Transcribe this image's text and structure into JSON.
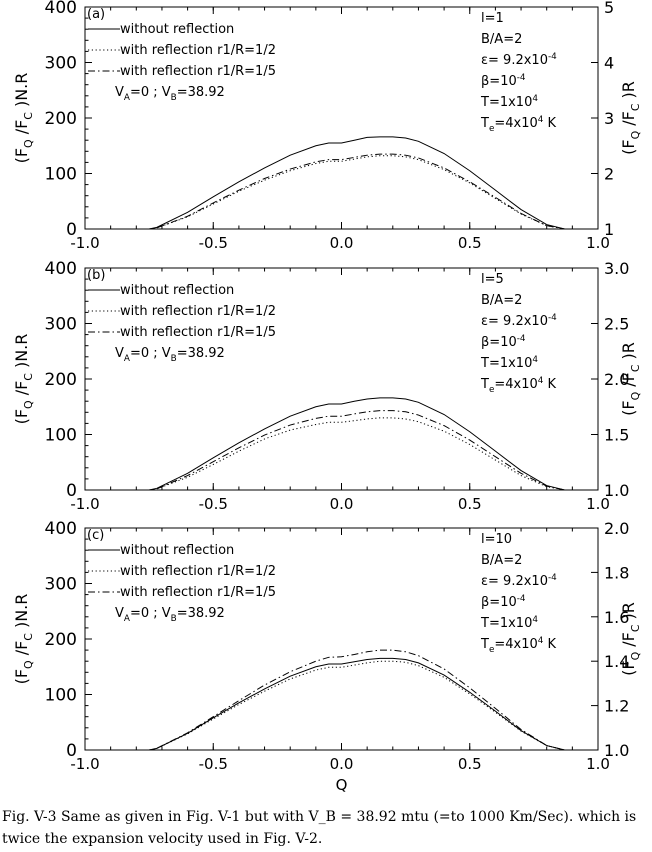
{
  "caption": "Fig. V-3 Same as given in Fig. V-1 but with V_B = 38.92 mtu (=to 1000 Km/Sec). which is twice the expansion velocity used in Fig. V-2.",
  "chart_data": [
    {
      "type": "line",
      "panel_label": "(a)",
      "xlabel": "",
      "ylabel_left": "(F_Q /F_C )N.R",
      "ylabel_right": "(F_Q /F_C )R",
      "xlim": [
        -1.0,
        1.0
      ],
      "ylim_left": [
        0,
        400
      ],
      "ylim_right": [
        1,
        5
      ],
      "x_ticks": [
        "-1.0",
        "-0.5",
        "0.0",
        "0.5",
        "1.0"
      ],
      "y_ticks_left": [
        "0",
        "100",
        "200",
        "300",
        "400"
      ],
      "y_ticks_right": [
        "1",
        "2",
        "3",
        "4",
        "5"
      ],
      "legend": [
        "without reflection",
        "with reflection r1/R=1/2",
        "with reflection r1/R=1/5"
      ],
      "velocity_note": "V_A=0 ; V_B=38.92",
      "params": [
        "l=1",
        "B/A=2",
        "ε= 9.2x10^-4",
        "β=10^-4",
        "T=1x10^4",
        "T_e=4x10^4 K"
      ],
      "series": [
        {
          "name": "without reflection",
          "style": "solid",
          "x": [
            -1.0,
            -0.75,
            -0.72,
            -0.6,
            -0.5,
            -0.4,
            -0.3,
            -0.2,
            -0.1,
            -0.05,
            0.0,
            0.05,
            0.1,
            0.15,
            0.2,
            0.25,
            0.3,
            0.4,
            0.5,
            0.6,
            0.7,
            0.8,
            0.87,
            1.0
          ],
          "y": [
            0,
            0,
            3,
            30,
            58,
            85,
            110,
            133,
            150,
            155,
            155,
            160,
            165,
            166,
            166,
            164,
            158,
            136,
            105,
            70,
            35,
            8,
            0,
            0
          ]
        },
        {
          "name": "with reflection r1/R=1/2",
          "style": "dotted",
          "x": [
            -1.0,
            -0.75,
            -0.72,
            -0.6,
            -0.5,
            -0.4,
            -0.3,
            -0.2,
            -0.1,
            -0.05,
            0.0,
            0.05,
            0.1,
            0.15,
            0.2,
            0.25,
            0.3,
            0.4,
            0.5,
            0.6,
            0.7,
            0.8,
            0.87,
            1.0
          ],
          "y": [
            0,
            0,
            2,
            22,
            45,
            68,
            88,
            105,
            118,
            122,
            122,
            126,
            130,
            132,
            132,
            130,
            125,
            107,
            83,
            55,
            27,
            6,
            0,
            0
          ]
        },
        {
          "name": "with reflection r1/R=1/5",
          "style": "dashdot",
          "x": [
            -1.0,
            -0.75,
            -0.72,
            -0.6,
            -0.5,
            -0.4,
            -0.3,
            -0.2,
            -0.1,
            -0.05,
            0.0,
            0.05,
            0.1,
            0.15,
            0.2,
            0.25,
            0.3,
            0.4,
            0.5,
            0.6,
            0.7,
            0.8,
            0.87,
            1.0
          ],
          "y": [
            0,
            0,
            2,
            23,
            47,
            70,
            91,
            108,
            121,
            125,
            125,
            129,
            133,
            135,
            135,
            133,
            128,
            110,
            85,
            57,
            28,
            6,
            0,
            0
          ]
        }
      ]
    },
    {
      "type": "line",
      "panel_label": "(b)",
      "xlabel": "",
      "ylabel_left": "(F_Q /F_C )N.R",
      "ylabel_right": "(F_Q /F_C )R",
      "xlim": [
        -1.0,
        1.0
      ],
      "ylim_left": [
        0,
        400
      ],
      "ylim_right": [
        1.0,
        3.0
      ],
      "x_ticks": [
        "-1.0",
        "-0.5",
        "0.0",
        "0.5",
        "1.0"
      ],
      "y_ticks_left": [
        "0",
        "100",
        "200",
        "300",
        "400"
      ],
      "y_ticks_right": [
        "1.0",
        "1.5",
        "2.0",
        "2.5",
        "3.0"
      ],
      "legend": [
        "without reflection",
        "with reflection r1/R=1/2",
        "with reflection r1/R=1/5"
      ],
      "velocity_note": "V_A=0 ; V_B=38.92",
      "params": [
        "l=5",
        "B/A=2",
        "ε= 9.2x10^-4",
        "β=10^-4",
        "T=1x10^4",
        "T_e=4x10^4 K"
      ],
      "series": [
        {
          "name": "without reflection",
          "style": "solid",
          "x": [
            -1.0,
            -0.75,
            -0.72,
            -0.6,
            -0.5,
            -0.4,
            -0.3,
            -0.2,
            -0.1,
            -0.05,
            0.0,
            0.05,
            0.1,
            0.15,
            0.2,
            0.25,
            0.3,
            0.4,
            0.5,
            0.6,
            0.7,
            0.8,
            0.87,
            1.0
          ],
          "y": [
            0,
            0,
            3,
            30,
            58,
            85,
            110,
            133,
            150,
            155,
            155,
            160,
            164,
            166,
            166,
            164,
            158,
            136,
            105,
            70,
            35,
            8,
            0,
            0
          ]
        },
        {
          "name": "with reflection r1/R=1/2",
          "style": "dotted",
          "x": [
            -1.0,
            -0.75,
            -0.72,
            -0.6,
            -0.5,
            -0.4,
            -0.3,
            -0.2,
            -0.1,
            -0.05,
            0.0,
            0.05,
            0.1,
            0.15,
            0.2,
            0.25,
            0.3,
            0.4,
            0.5,
            0.6,
            0.7,
            0.8,
            0.87,
            1.0
          ],
          "y": [
            0,
            0,
            2,
            23,
            46,
            70,
            92,
            108,
            118,
            122,
            122,
            125,
            128,
            130,
            130,
            128,
            123,
            106,
            82,
            54,
            26,
            6,
            0,
            0
          ]
        },
        {
          "name": "with reflection r1/R=1/5",
          "style": "dashdot",
          "x": [
            -1.0,
            -0.75,
            -0.72,
            -0.6,
            -0.5,
            -0.4,
            -0.3,
            -0.2,
            -0.1,
            -0.05,
            0.0,
            0.05,
            0.1,
            0.15,
            0.2,
            0.25,
            0.3,
            0.4,
            0.5,
            0.6,
            0.7,
            0.8,
            0.87,
            1.0
          ],
          "y": [
            0,
            0,
            2,
            26,
            51,
            76,
            99,
            117,
            129,
            133,
            133,
            137,
            141,
            143,
            143,
            141,
            135,
            116,
            90,
            60,
            30,
            7,
            0,
            0
          ]
        }
      ]
    },
    {
      "type": "line",
      "panel_label": "(c)",
      "xlabel": "Q",
      "ylabel_left": "(F_Q /F_C )N.R",
      "ylabel_right": "(F_Q /F_C )R",
      "xlim": [
        -1.0,
        1.0
      ],
      "ylim_left": [
        0,
        400
      ],
      "ylim_right": [
        1.0,
        2.0
      ],
      "x_ticks": [
        "-1.0",
        "-0.5",
        "0.0",
        "0.5",
        "1.0"
      ],
      "y_ticks_left": [
        "0",
        "100",
        "200",
        "300",
        "400"
      ],
      "y_ticks_right": [
        "1.0",
        "1.2",
        "1.4",
        "1.6",
        "1.8",
        "2.0"
      ],
      "legend": [
        "without reflection",
        "with reflection r1/R=1/2",
        "with reflection r1/R=1/5"
      ],
      "velocity_note": "V_A=0 ; V_B=38.92",
      "params": [
        "l=10",
        "B/A=2",
        "ε= 9.2x10^-4",
        "β=10^-4",
        "T=1x10^4",
        "T_e=4x10^4 K"
      ],
      "series": [
        {
          "name": "without reflection",
          "style": "solid",
          "x": [
            -1.0,
            -0.75,
            -0.72,
            -0.6,
            -0.5,
            -0.4,
            -0.3,
            -0.2,
            -0.1,
            -0.05,
            0.0,
            0.05,
            0.1,
            0.15,
            0.2,
            0.25,
            0.3,
            0.4,
            0.5,
            0.6,
            0.7,
            0.8,
            0.87,
            1.0
          ],
          "y": [
            0,
            0,
            3,
            30,
            58,
            85,
            110,
            133,
            150,
            155,
            155,
            159,
            163,
            165,
            165,
            163,
            157,
            135,
            104,
            70,
            35,
            8,
            0,
            0
          ]
        },
        {
          "name": "with reflection r1/R=1/2",
          "style": "dotted",
          "x": [
            -1.0,
            -0.75,
            -0.72,
            -0.6,
            -0.5,
            -0.4,
            -0.3,
            -0.2,
            -0.1,
            -0.05,
            0.0,
            0.05,
            0.1,
            0.15,
            0.2,
            0.25,
            0.3,
            0.4,
            0.5,
            0.6,
            0.7,
            0.8,
            0.87,
            1.0
          ],
          "y": [
            0,
            0,
            3,
            29,
            56,
            82,
            106,
            128,
            144,
            149,
            149,
            153,
            157,
            160,
            160,
            158,
            152,
            131,
            101,
            68,
            34,
            8,
            0,
            0
          ]
        },
        {
          "name": "with reflection r1/R=1/5",
          "style": "dashdot",
          "x": [
            -1.0,
            -0.75,
            -0.72,
            -0.6,
            -0.5,
            -0.4,
            -0.3,
            -0.2,
            -0.1,
            -0.05,
            0.0,
            0.05,
            0.1,
            0.15,
            0.2,
            0.25,
            0.3,
            0.4,
            0.5,
            0.6,
            0.7,
            0.8,
            0.87,
            1.0
          ],
          "y": [
            0,
            0,
            3,
            31,
            60,
            89,
            117,
            141,
            160,
            167,
            168,
            172,
            177,
            180,
            180,
            177,
            170,
            146,
            112,
            75,
            37,
            8,
            0,
            0
          ]
        }
      ]
    }
  ]
}
